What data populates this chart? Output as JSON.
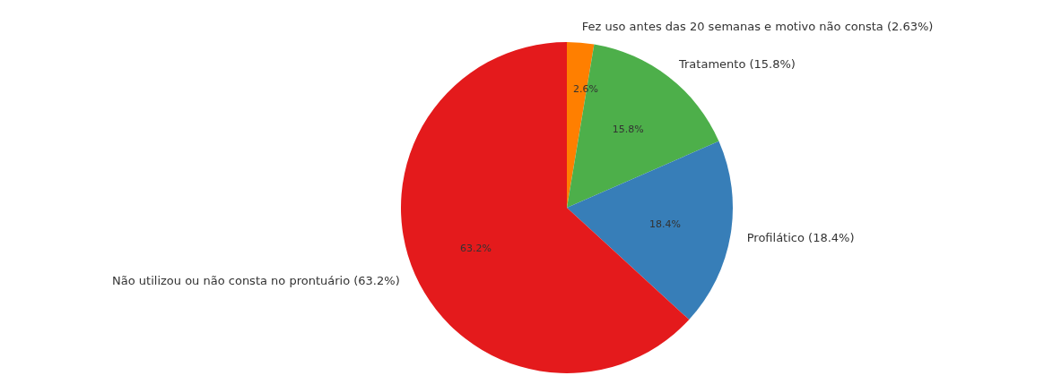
{
  "chart_data": {
    "type": "pie",
    "categories": [
      "Fez uso antes das 20 semanas e motivo não consta (2.63%)",
      "Tratamento (15.8%)",
      "Profilático (18.4%)",
      "Não utilizou ou não consta no prontuário (63.2%)"
    ],
    "values": [
      2.63,
      15.8,
      18.4,
      63.2
    ],
    "colors": [
      "#ff7f00",
      "#4daf4a",
      "#377eb8",
      "#e41a1c"
    ],
    "value_labels": [
      "2.6%",
      "15.8%",
      "18.4%",
      "63.2%"
    ]
  }
}
